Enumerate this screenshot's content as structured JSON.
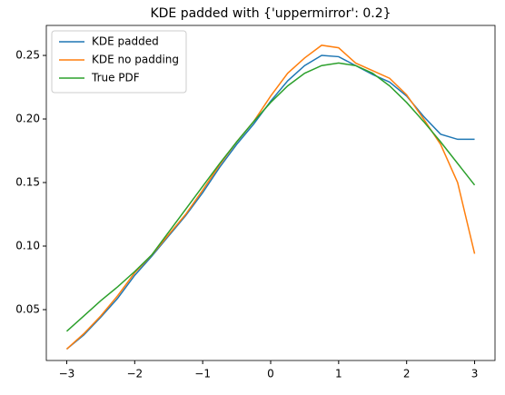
{
  "chart_data": {
    "type": "line",
    "title": "KDE padded with {'uppermirror': 0.2}",
    "x": [
      -3,
      -2.75,
      -2.5,
      -2.25,
      -2,
      -1.75,
      -1.5,
      -1.25,
      -1,
      -0.75,
      -0.5,
      -0.25,
      0,
      0.25,
      0.5,
      0.75,
      1,
      1.25,
      1.5,
      1.75,
      2,
      2.25,
      2.5,
      2.75,
      3
    ],
    "series": [
      {
        "name": "KDE padded",
        "color": "#1f77b4",
        "values": [
          0.019,
          0.03,
          0.044,
          0.059,
          0.077,
          0.092,
          0.108,
          0.124,
          0.142,
          0.162,
          0.18,
          0.196,
          0.214,
          0.23,
          0.242,
          0.25,
          0.249,
          0.242,
          0.235,
          0.229,
          0.218,
          0.202,
          0.188,
          0.184,
          0.184
        ]
      },
      {
        "name": "KDE no padding",
        "color": "#ff7f0e",
        "values": [
          0.019,
          0.031,
          0.045,
          0.061,
          0.079,
          0.093,
          0.109,
          0.125,
          0.144,
          0.164,
          0.182,
          0.198,
          0.218,
          0.236,
          0.248,
          0.258,
          0.256,
          0.244,
          0.238,
          0.232,
          0.219,
          0.2,
          0.18,
          0.15,
          0.094
        ]
      },
      {
        "name": "True PDF",
        "color": "#2ca02c",
        "values": [
          0.033,
          0.045,
          0.057,
          0.068,
          0.08,
          0.093,
          0.111,
          0.129,
          0.147,
          0.165,
          0.182,
          0.198,
          0.213,
          0.226,
          0.236,
          0.242,
          0.244,
          0.242,
          0.236,
          0.226,
          0.213,
          0.198,
          0.182,
          0.165,
          0.148
        ]
      }
    ],
    "xlim": [
      -3.3,
      3.3
    ],
    "xticks": [
      {
        "value": -3,
        "label": "−3"
      },
      {
        "value": -2,
        "label": "−2"
      },
      {
        "value": -1,
        "label": "−1"
      },
      0,
      1,
      2,
      3
    ],
    "ylim": [
      0.01,
      0.2736
    ],
    "yticks": [
      0.05,
      {
        "value": 0.1,
        "label": "0.10"
      },
      0.15,
      {
        "value": 0.2,
        "label": "0.20"
      },
      0.25
    ],
    "legend": "upper left"
  }
}
